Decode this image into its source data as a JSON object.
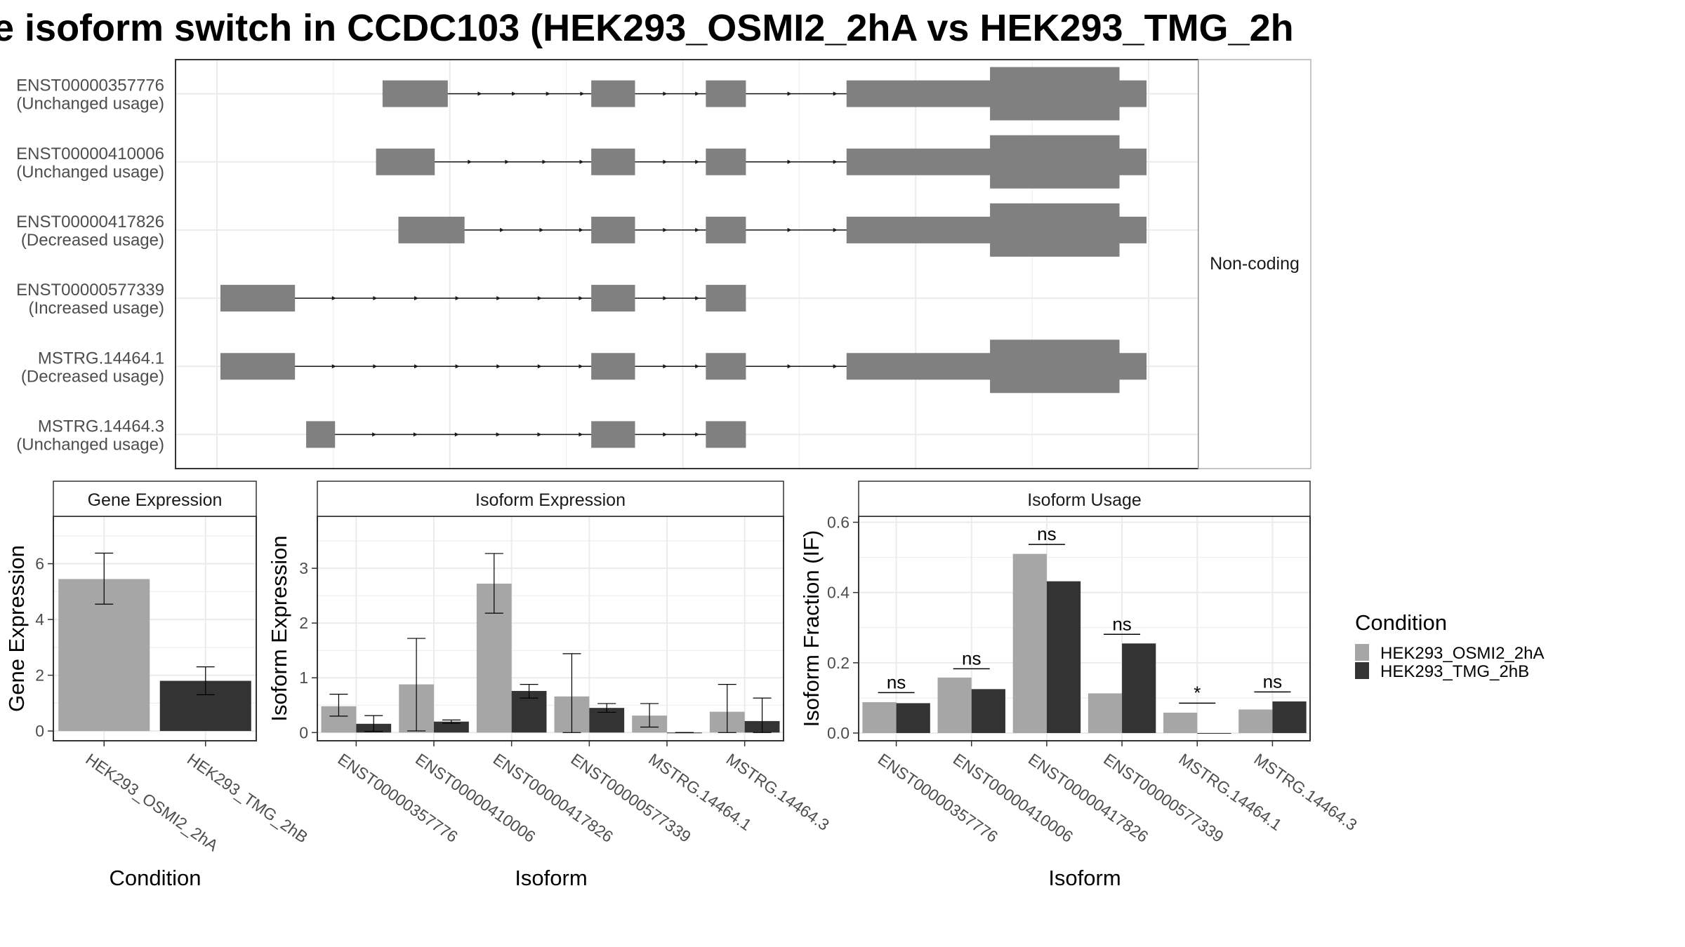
{
  "title": "e isoform switch in CCDC103 (HEK293_OSMI2_2hA vs HEK293_TMG_2h",
  "colors": {
    "cond_a": "#a6a6a6",
    "cond_b": "#333333",
    "exon": "#808080",
    "grid": "#ebebeb"
  },
  "structure_panel": {
    "strip_label": "Non-coding",
    "isoforms": [
      {
        "id": "ENST00000357776",
        "usage": "(Unchanged usage)",
        "exons": [
          [
            0.174,
            0.244
          ],
          [
            0.398,
            0.445
          ],
          [
            0.521,
            0.564
          ],
          [
            0.672,
            0.994
          ]
        ],
        "thick": [
          0.826,
          0.965
        ]
      },
      {
        "id": "ENST00000410006",
        "usage": "(Unchanged usage)",
        "exons": [
          [
            0.167,
            0.23
          ],
          [
            0.398,
            0.445
          ],
          [
            0.521,
            0.564
          ],
          [
            0.672,
            0.994
          ]
        ],
        "thick": [
          0.826,
          0.965
        ]
      },
      {
        "id": "ENST00000417826",
        "usage": "(Decreased usage)",
        "exons": [
          [
            0.191,
            0.262
          ],
          [
            0.398,
            0.445
          ],
          [
            0.521,
            0.564
          ],
          [
            0.672,
            0.994
          ]
        ],
        "thick": [
          0.826,
          0.965
        ]
      },
      {
        "id": "ENST00000577339",
        "usage": "(Increased usage)",
        "exons": [
          [
            0.0,
            0.08
          ],
          [
            0.398,
            0.445
          ],
          [
            0.521,
            0.564
          ]
        ],
        "thick": null
      },
      {
        "id": "MSTRG.14464.1",
        "usage": "(Decreased usage)",
        "exons": [
          [
            0.0,
            0.08
          ],
          [
            0.398,
            0.445
          ],
          [
            0.521,
            0.564
          ],
          [
            0.672,
            0.994
          ]
        ],
        "thick": [
          0.826,
          0.965
        ]
      },
      {
        "id": "MSTRG.14464.3",
        "usage": "(Unchanged usage)",
        "exons": [
          [
            0.092,
            0.123
          ],
          [
            0.398,
            0.445
          ],
          [
            0.521,
            0.564
          ]
        ],
        "thick": null
      }
    ]
  },
  "chart_data": [
    {
      "type": "bar",
      "title": "Gene Expression",
      "xlabel": "Condition",
      "ylabel": "Gene Expression",
      "ylim": [
        -0.35,
        7.7
      ],
      "yticks": [
        0,
        2,
        4,
        6
      ],
      "categories": [
        "HEK293_OSMI2_2hA",
        "HEK293_TMG_2hB"
      ],
      "values": [
        5.45,
        1.8
      ],
      "errors": [
        [
          4.55,
          6.38
        ],
        [
          1.3,
          2.3
        ]
      ]
    },
    {
      "type": "bar",
      "title": "Isoform Expression",
      "xlabel": "Isoform",
      "ylabel": "Isoform Expression",
      "ylim": [
        -0.15,
        3.95
      ],
      "yticks": [
        0,
        1,
        2,
        3
      ],
      "categories": [
        "ENST00000357776",
        "ENST00000410006",
        "ENST00000417826",
        "ENST00000577339",
        "MSTRG.14464.1",
        "MSTRG.14464.3"
      ],
      "series": [
        {
          "name": "HEK293_OSMI2_2hA",
          "values": [
            0.48,
            0.88,
            2.72,
            0.66,
            0.31,
            0.38
          ],
          "errors": [
            [
              0.3,
              0.7
            ],
            [
              0.03,
              1.72
            ],
            [
              2.18,
              3.27
            ],
            [
              0.0,
              1.44
            ],
            [
              0.1,
              0.53
            ],
            [
              0.0,
              0.88
            ]
          ]
        },
        {
          "name": "HEK293_TMG_2hB",
          "values": [
            0.16,
            0.2,
            0.76,
            0.45,
            0.0,
            0.21
          ],
          "errors": [
            [
              0.02,
              0.31
            ],
            [
              0.17,
              0.23
            ],
            [
              0.63,
              0.88
            ],
            [
              0.37,
              0.53
            ],
            [
              0.0,
              0.0
            ],
            [
              0.0,
              0.63
            ]
          ]
        }
      ]
    },
    {
      "type": "bar",
      "title": "Isoform Usage",
      "xlabel": "Isoform",
      "ylabel": "Isoform Fraction (IF)",
      "ylim": [
        -0.022,
        0.617
      ],
      "yticks": [
        0.0,
        0.2,
        0.4,
        0.6
      ],
      "ytick_labels": [
        "0.0",
        "0.2",
        "0.4",
        "0.6"
      ],
      "categories": [
        "ENST00000357776",
        "ENST00000410006",
        "ENST00000417826",
        "ENST00000577339",
        "MSTRG.14464.1",
        "MSTRG.14464.3"
      ],
      "series": [
        {
          "name": "HEK293_OSMI2_2hA",
          "values": [
            0.088,
            0.158,
            0.51,
            0.113,
            0.058,
            0.067
          ]
        },
        {
          "name": "HEK293_TMG_2hB",
          "values": [
            0.085,
            0.125,
            0.432,
            0.255,
            0.0,
            0.09
          ]
        }
      ],
      "significance": [
        {
          "label": "ns",
          "y": 0.115
        },
        {
          "label": "ns",
          "y": 0.183
        },
        {
          "label": "ns",
          "y": 0.537
        },
        {
          "label": "ns",
          "y": 0.281
        },
        {
          "label": "*",
          "y": 0.085
        },
        {
          "label": "ns",
          "y": 0.117
        }
      ]
    }
  ],
  "legend": {
    "title": "Condition",
    "entries": [
      "HEK293_OSMI2_2hA",
      "HEK293_TMG_2hB"
    ]
  }
}
